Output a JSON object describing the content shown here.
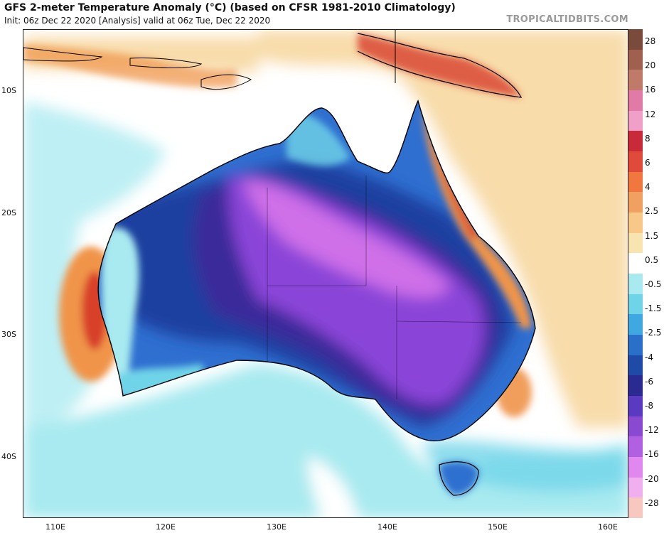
{
  "header": {
    "title": "GFS 2-meter Temperature Anomaly (°C) (based on CFSR 1981-2010 Climatology)",
    "subtitle": "Init: 06z Dec 22 2020   [Analysis]   valid at 06z Tue, Dec 22 2020",
    "brand": "TROPICALTIDBITS.COM"
  },
  "axes": {
    "lat_labels": [
      "10S",
      "20S",
      "30S",
      "40S"
    ],
    "lon_labels": [
      "110E",
      "120E",
      "130E",
      "140E",
      "150E",
      "160E"
    ]
  },
  "colorbar": {
    "labels": [
      "28",
      "20",
      "16",
      "12",
      "8",
      "6",
      "4",
      "2.5",
      "1.5",
      "0.5",
      "-0.5",
      "-1.5",
      "-2.5",
      "-4",
      "-6",
      "-8",
      "-12",
      "-16",
      "-20",
      "-28"
    ],
    "colors": [
      "#7a4a3a",
      "#a06050",
      "#c07a6a",
      "#e27aa8",
      "#f0a0c8",
      "#c82a3a",
      "#e04a3a",
      "#f07840",
      "#f0a060",
      "#f8c888",
      "#f8e4b0",
      "#ffffff",
      "#a8eaf0",
      "#70d4e8",
      "#40a8e0",
      "#2a70c8",
      "#1f4aa8",
      "#2a2a90",
      "#5a3ac0",
      "#8a4ad0",
      "#b060e0",
      "#e088f0",
      "#f0b0f0",
      "#f8c8c0"
    ]
  },
  "map": {
    "colors": {
      "warm_ocean": "#f8dcaa",
      "white_ocean": "#ffffff",
      "cool_ocean": "#a8eaf0",
      "cyan": "#70d4e8",
      "blue": "#2f6fd0",
      "deep_blue": "#1f3fa0",
      "indigo": "#3a2a9a",
      "purple": "#8a44d8",
      "magenta": "#cf6fe8",
      "orange": "#f0944a",
      "red": "#d8402a",
      "coast": "#000000"
    }
  }
}
